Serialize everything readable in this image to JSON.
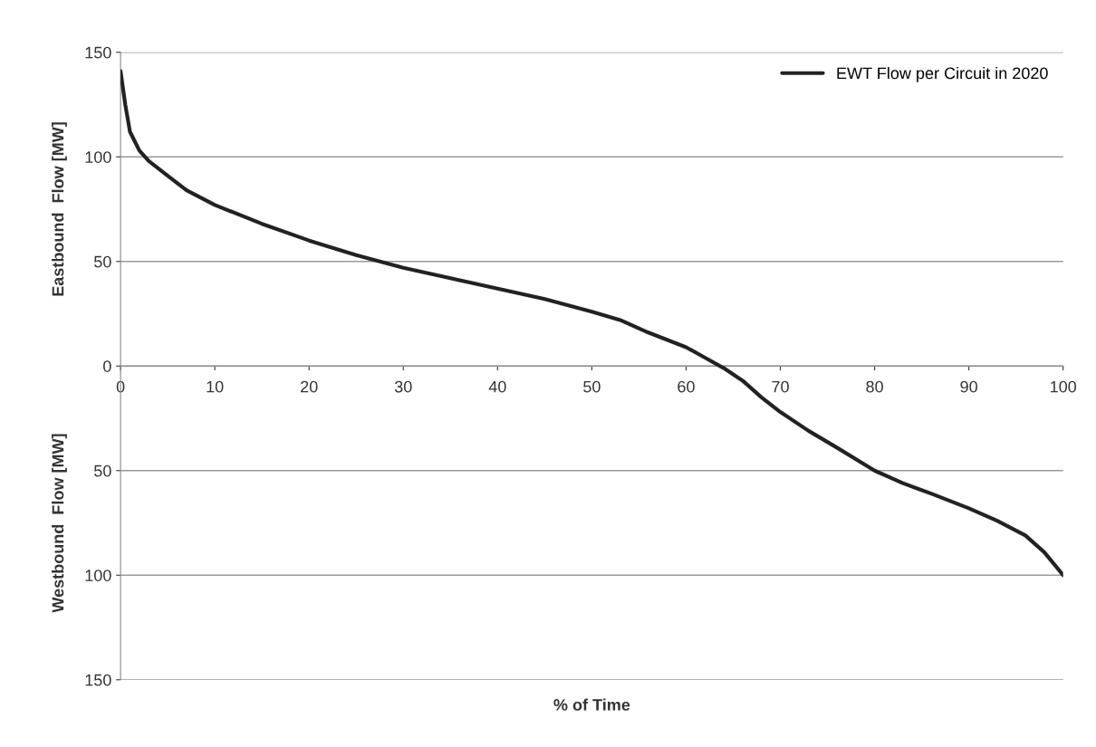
{
  "chart_data": {
    "type": "line",
    "xlabel": "% of Time",
    "ylabel": "Eastbound  Flow [MW]",
    "annotations": [
      "Westbound  Flow [MW]"
    ],
    "x": [
      0,
      0.5,
      1,
      2,
      3,
      5,
      7,
      10,
      15,
      20,
      25,
      30,
      35,
      40,
      45,
      50,
      53,
      56,
      60,
      62,
      64,
      66,
      68,
      70,
      73,
      76,
      80,
      83,
      86,
      90,
      93,
      96,
      98,
      100
    ],
    "series": [
      {
        "name": "EWT Flow per Circuit in 2020",
        "color": "#222222",
        "values": [
          141,
          125,
          112,
          103,
          98,
          91,
          84,
          77,
          68,
          60,
          53,
          47,
          42,
          37,
          32,
          26,
          22,
          16,
          9,
          4,
          -1,
          -7,
          -15,
          -22,
          -31,
          -39,
          -50,
          -56,
          -61,
          -68,
          -74,
          -81,
          -89,
          -100
        ]
      }
    ],
    "xlim": [
      0,
      100
    ],
    "xticks": [
      0,
      10,
      20,
      30,
      40,
      50,
      60,
      70,
      80,
      90,
      100
    ],
    "ylim": [
      -150,
      150
    ],
    "yticks": [
      {
        "value": -150,
        "label": "150"
      },
      {
        "value": -100,
        "label": "100"
      },
      {
        "value": -50,
        "label": "50"
      },
      0,
      50,
      100,
      150
    ],
    "grid": "y",
    "legend": "top right",
    "marker": "none",
    "line_style": "solid"
  }
}
